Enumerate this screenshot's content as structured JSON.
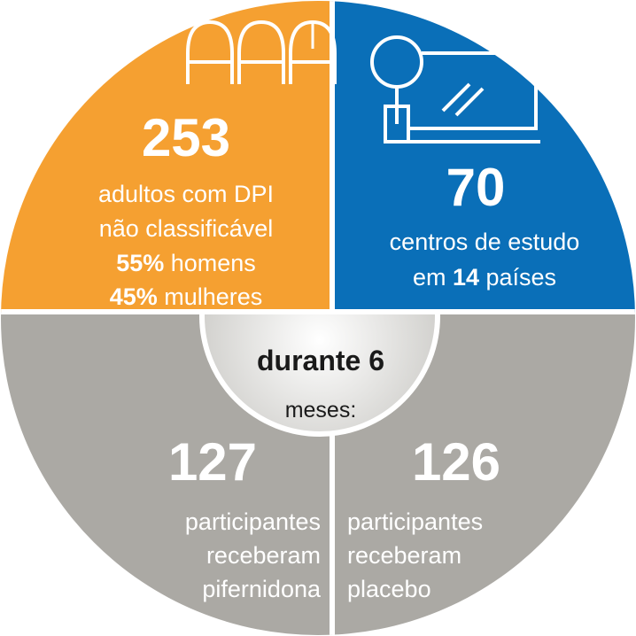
{
  "quadrants": [
    {
      "number": "253",
      "lines": [
        [
          "adultos com DPI"
        ],
        [
          "não classificável"
        ],
        [
          "55%",
          " homens"
        ],
        [
          "45%",
          " mulheres"
        ]
      ]
    },
    {
      "number": "70",
      "lines": [
        [
          "centros de estudo"
        ],
        [
          "em ",
          "14",
          " países"
        ]
      ]
    },
    {
      "number": "127",
      "lines": [
        [
          "participantes"
        ],
        [
          "receberam"
        ],
        [
          "pifernidona"
        ]
      ]
    },
    {
      "number": "126",
      "lines": [
        [
          "participantes"
        ],
        [
          "receberam"
        ],
        [
          "placebo"
        ]
      ]
    }
  ],
  "center": {
    "line1": "durante 6",
    "line2": "meses:"
  }
}
